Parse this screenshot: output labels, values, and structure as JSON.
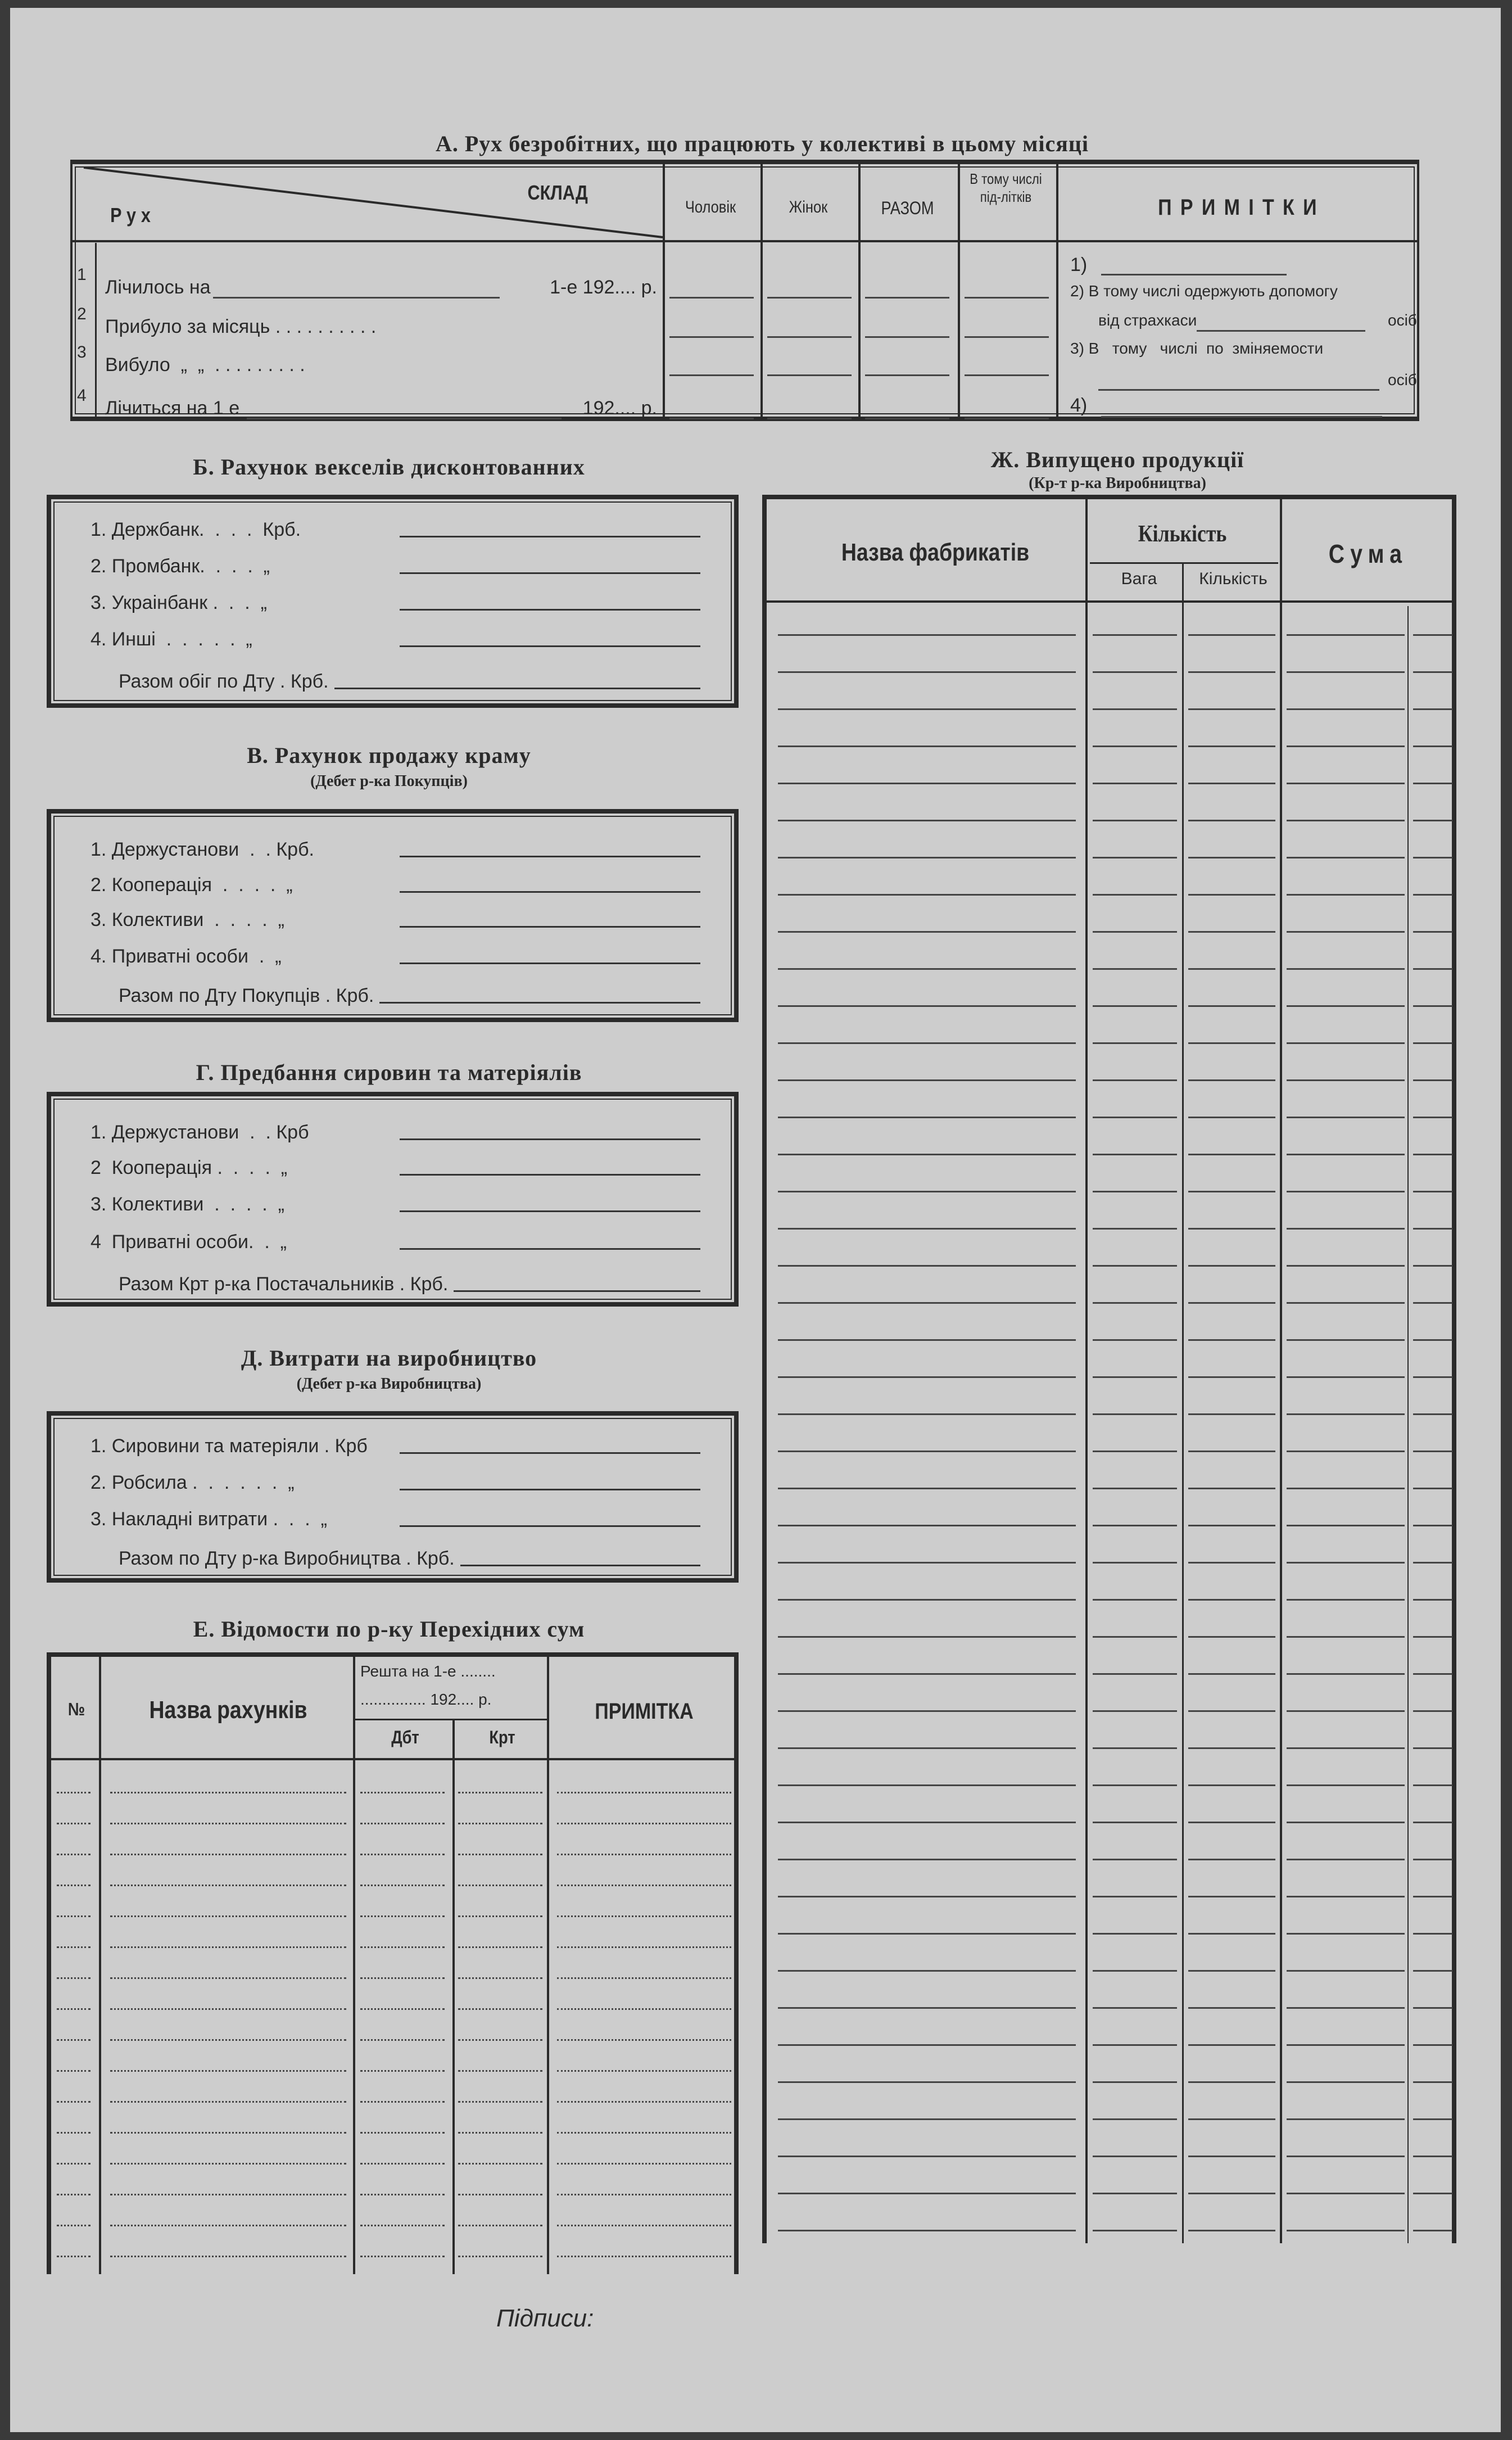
{
  "section_a": {
    "title": "А. Рух безробітних, що працюють у колективі в цьому місяці",
    "headers": {
      "rukh": "Рух",
      "sklad": "СКЛАД",
      "men": "Чоловік",
      "women": "Жінок",
      "total": "РАЗОМ",
      "teens": "В тому числі під-літків",
      "notes": "ПРИМІТКИ"
    },
    "rows": [
      {
        "num": "1",
        "label": "Лічилось на",
        "suffix": "1-е 192.... р."
      },
      {
        "num": "2",
        "label": "Прибуло за місяць . . . . . . . . . .",
        "suffix": ""
      },
      {
        "num": "3",
        "label": "Вибуло  „  „  . . . . . . . . .",
        "suffix": ""
      },
      {
        "num": "4",
        "label": "Лічиться на 1 е",
        "suffix": "192.... р."
      }
    ],
    "notes": [
      "1)",
      "2) В тому числі одержують допомогу",
      "від страхкаси",
      "осіб",
      "3) В   тому   числі  по  зміняемости",
      "осіб",
      "4)"
    ]
  },
  "section_b": {
    "title": "Б. Рахунок векселів дисконтованних",
    "items": [
      "1. Держбанк.  .  .  .  Крб.",
      "2. Промбанк.  .  .  .  „",
      "3. Украінбанк .  .  .  „",
      "4. Инші  .  .  .  .  .  „"
    ],
    "total": "Разом обіг по Дту . Крб."
  },
  "section_v": {
    "title": "В. Рахунок продажу краму",
    "subtitle": "(Дебет р-ка Покупців)",
    "items": [
      "1. Держустанови  .  . Крб.",
      "2. Кооперація  .  .  .  .  „",
      "3. Колективи  .  .  .  .  „",
      "4. Приватні особи  .  „"
    ],
    "total": "Разом по Дту Покупців . Крб."
  },
  "section_g": {
    "title": "Г. Предбання сировин та матеріялів",
    "items": [
      "1. Держустанови  .  . Крб",
      "2  Кооперація .  .  .  .  „",
      "3. Колективи  .  .  .  .  „",
      "4  Приватні особи.  .  „"
    ],
    "total": "Разом Крт р-ка Постачальників . Крб."
  },
  "section_d": {
    "title": "Д. Витрати на виробництво",
    "subtitle": "(Дебет р-ка Виробництва)",
    "items": [
      "1. Сировини та матеріяли . Крб",
      "2. Робсила .  .  .  .  .  .  „",
      "3. Накладні витрати .  .  .  „"
    ],
    "total": "Разом по Дту р-ка Виробництва . Крб."
  },
  "section_e": {
    "title": "Е. Відомости по р-ку Перехідних сум",
    "headers": {
      "num": "№",
      "name": "Назва рахунків",
      "balance_line1": "Решта на 1-е ........",
      "balance_line2": "............... 192.... р.",
      "debit": "Дбт",
      "credit": "Крт",
      "note": "ПРИМІТКА"
    }
  },
  "section_zh": {
    "title": "Ж. Випущено продукції",
    "subtitle": "(Кр-т р-ка Виробництва)",
    "headers": {
      "name": "Назва фабрикатів",
      "quantity": "Кількість",
      "weight": "Вага",
      "count": "Кількість",
      "sum": "Сума"
    }
  },
  "signatures": "Підписи:"
}
